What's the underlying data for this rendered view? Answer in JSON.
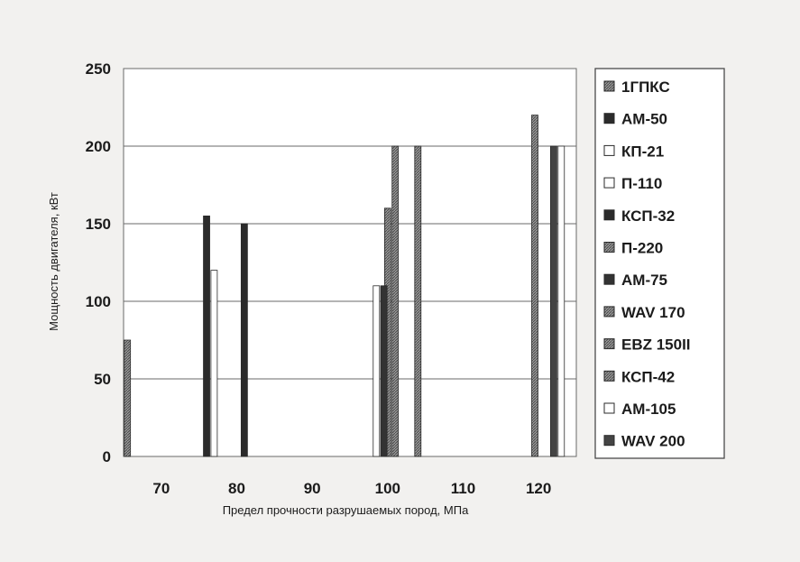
{
  "chart_data": {
    "type": "bar",
    "xlabel": "Предел прочности разрушаемых пород, МПа",
    "ylabel": "Мощность двигателя, кВт",
    "ylim": [
      0,
      250
    ],
    "yticks": [
      0,
      50,
      100,
      150,
      200,
      250
    ],
    "xlim": [
      65,
      125
    ],
    "xticks": [
      70,
      80,
      90,
      100,
      110,
      120
    ],
    "grid": "horizontal",
    "legend_position": "right",
    "series": [
      {
        "name": "1ГПКС",
        "x": 65.5,
        "value": 75,
        "fill": "#8f8f8f",
        "pattern": "hatch"
      },
      {
        "name": "АМ-50",
        "x": 76,
        "value": 155,
        "fill": "#2b2b2b",
        "pattern": "solid"
      },
      {
        "name": "КП-21",
        "x": 77,
        "value": 120,
        "fill": "#ffffff",
        "pattern": "solid"
      },
      {
        "name": "П-110",
        "x": 98.5,
        "value": 110,
        "fill": "#ffffff",
        "pattern": "solid"
      },
      {
        "name": "КСП-32",
        "x": 81,
        "value": 150,
        "fill": "#2b2b2b",
        "pattern": "solid"
      },
      {
        "name": "П-220",
        "x": 100,
        "value": 160,
        "fill": "#8f8f8f",
        "pattern": "hatch"
      },
      {
        "name": "АМ-75",
        "x": 99.5,
        "value": 110,
        "fill": "#333333",
        "pattern": "solid"
      },
      {
        "name": "WAV 170",
        "x": 101,
        "value": 200,
        "fill": "#bdbdbd",
        "pattern": "hatch"
      },
      {
        "name": "EBZ 150II",
        "x": 104,
        "value": 200,
        "fill": "#3a3a3a",
        "pattern": "hatch"
      },
      {
        "name": "КСП-42",
        "x": 119.5,
        "value": 220,
        "fill": "#6f6f6f",
        "pattern": "hatch"
      },
      {
        "name": "АМ-105",
        "x": 123,
        "value": 200,
        "fill": "#ffffff",
        "pattern": "solid"
      },
      {
        "name": "WAV 200",
        "x": 122,
        "value": 200,
        "fill": "#444444",
        "pattern": "solid"
      }
    ]
  }
}
